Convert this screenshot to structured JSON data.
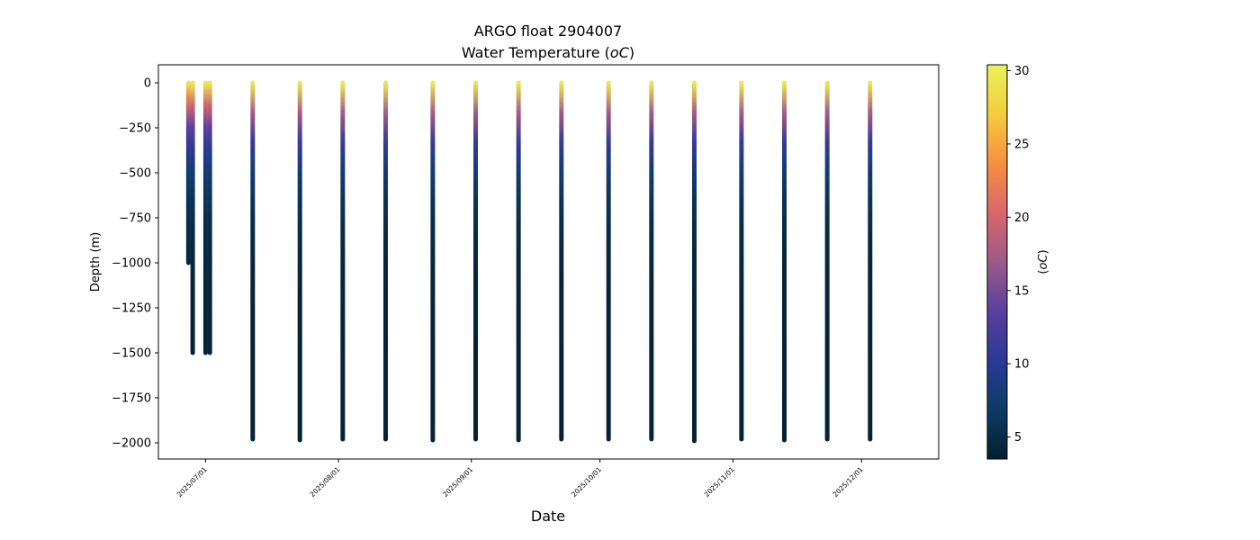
{
  "chart_data": {
    "type": "scatter",
    "title": "ARGO float 2904007",
    "subtitle": "Water Temperature (",
    "subtitle_unit_italic": "oC",
    "subtitle_close": ")",
    "xlabel": "Date",
    "ylabel": "Depth (m)",
    "ylim": [
      -2090,
      100
    ],
    "xlim": [
      "2025-06-20",
      "2025-12-19"
    ],
    "grid": false,
    "colormap": "thermal",
    "colormap_stops": [
      "#04202f",
      "#0d3b66",
      "#2a3a95",
      "#5a3f9e",
      "#9e5a88",
      "#d8676a",
      "#f6903f",
      "#f4cc3d",
      "#e8f25a"
    ],
    "colorbar": {
      "label_open": "(",
      "label_unit_italic": "oC",
      "label_close": ")",
      "range": [
        3.5,
        30.4
      ],
      "ticks": [
        "5",
        "10",
        "15",
        "20",
        "25",
        "30"
      ],
      "tick_values": [
        5,
        10,
        15,
        20,
        25,
        30
      ]
    },
    "y_ticks": [
      "0",
      "−250",
      "−500",
      "−750",
      "−1000",
      "−1250",
      "−1500",
      "−1750",
      "−2000"
    ],
    "y_tick_values": [
      0,
      -250,
      -500,
      -750,
      -1000,
      -1250,
      -1500,
      -1750,
      -2000
    ],
    "x_ticks": [
      "2025/07/01",
      "2025/08/01",
      "2025/09/01",
      "2025/10/01",
      "2025/11/01",
      "2025/12/01"
    ],
    "x_tick_values": [
      "2025-07-01",
      "2025-08-01",
      "2025-09-01",
      "2025-10-01",
      "2025-11-01",
      "2025-12-01"
    ],
    "surface_temperature": 29.5,
    "profiles": [
      {
        "date": "2025-06-27",
        "max_depth": -1000
      },
      {
        "date": "2025-06-28",
        "max_depth": -1500
      },
      {
        "date": "2025-07-01",
        "max_depth": -1500
      },
      {
        "date": "2025-07-02",
        "max_depth": -1500
      },
      {
        "date": "2025-07-12",
        "max_depth": -1980
      },
      {
        "date": "2025-07-23",
        "max_depth": -1985
      },
      {
        "date": "2025-08-02",
        "max_depth": -1980
      },
      {
        "date": "2025-08-12",
        "max_depth": -1980
      },
      {
        "date": "2025-08-23",
        "max_depth": -1985
      },
      {
        "date": "2025-09-02",
        "max_depth": -1980
      },
      {
        "date": "2025-09-12",
        "max_depth": -1985
      },
      {
        "date": "2025-09-22",
        "max_depth": -1980
      },
      {
        "date": "2025-10-03",
        "max_depth": -1980
      },
      {
        "date": "2025-10-13",
        "max_depth": -1980
      },
      {
        "date": "2025-10-23",
        "max_depth": -1990
      },
      {
        "date": "2025-11-03",
        "max_depth": -1980
      },
      {
        "date": "2025-11-13",
        "max_depth": -1985
      },
      {
        "date": "2025-11-23",
        "max_depth": -1980
      },
      {
        "date": "2025-12-03",
        "max_depth": -1980
      }
    ]
  }
}
